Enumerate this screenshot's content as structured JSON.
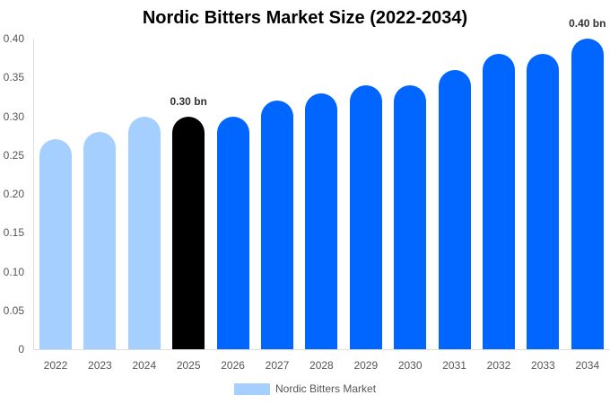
{
  "chart_data": {
    "type": "bar",
    "title": "Nordic Bitters Market Size (2022-2034)",
    "xlabel": "",
    "ylabel": "",
    "ylim": [
      0,
      0.4
    ],
    "yticks": [
      "0",
      "0.05",
      "0.10",
      "0.15",
      "0.20",
      "0.25",
      "0.30",
      "0.35",
      "0.40"
    ],
    "categories": [
      "2022",
      "2023",
      "2024",
      "2025",
      "2026",
      "2027",
      "2028",
      "2029",
      "2030",
      "2031",
      "2032",
      "2033",
      "2034"
    ],
    "series": [
      {
        "name": "Nordic Bitters Market",
        "values": [
          0.27,
          0.28,
          0.3,
          0.3,
          0.3,
          0.32,
          0.33,
          0.34,
          0.34,
          0.36,
          0.38,
          0.38,
          0.4
        ]
      }
    ],
    "bar_colors": [
      "#a4cffe",
      "#a4cffe",
      "#a4cffe",
      "#000000",
      "#0066ff",
      "#0066ff",
      "#0066ff",
      "#0066ff",
      "#0066ff",
      "#0066ff",
      "#0066ff",
      "#0066ff",
      "#0066ff"
    ],
    "annotations": [
      {
        "category": "2025",
        "text": "0.30 bn"
      },
      {
        "category": "2034",
        "text": "0.40 bn"
      }
    ],
    "grid": false,
    "legend_position": "bottom"
  },
  "legend": {
    "label": "Nordic Bitters Market",
    "color": "#a4cffe"
  }
}
